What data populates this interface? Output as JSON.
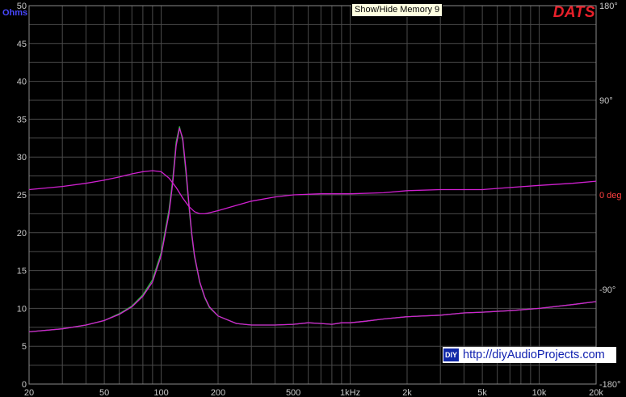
{
  "tooltip": "Show/Hide Memory 9",
  "brand": "DATS",
  "watermark": {
    "badge": "DIY",
    "text": "http://diyAudioProjects.com"
  },
  "colors": {
    "impedance_trace": "#d020d0",
    "memory_trace": "#30c040",
    "phase_trace": "#d020d0",
    "left_axis_label": "#4848ff",
    "right_axis_label": "#ff4040",
    "brand": "#e8202a"
  },
  "chart_data": {
    "type": "line",
    "xscale": "log",
    "xlim": [
      20,
      20000
    ],
    "x_ticks": [
      {
        "v": 20,
        "label": "20"
      },
      {
        "v": 50,
        "label": "50"
      },
      {
        "v": 100,
        "label": "100"
      },
      {
        "v": 200,
        "label": "200"
      },
      {
        "v": 500,
        "label": "500"
      },
      {
        "v": 1000,
        "label": "1kHz"
      },
      {
        "v": 2000,
        "label": "2k"
      },
      {
        "v": 5000,
        "label": "5k"
      },
      {
        "v": 10000,
        "label": "10k"
      },
      {
        "v": 20000,
        "label": "20k"
      }
    ],
    "ylabel": "Ohms",
    "ylim": [
      0,
      50
    ],
    "y_ticks": [
      0,
      5,
      10,
      15,
      20,
      25,
      30,
      35,
      40,
      45,
      50
    ],
    "y2label": "deg",
    "y2lim": [
      -180,
      180
    ],
    "y2_ticks": [
      {
        "v": 180,
        "label": "180°"
      },
      {
        "v": 90,
        "label": "90°"
      },
      {
        "v": 0,
        "label": "0 deg"
      },
      {
        "v": -90,
        "label": "-90°"
      },
      {
        "v": -180,
        "label": "-180°"
      }
    ],
    "grid": true,
    "series": [
      {
        "axis": "left",
        "x": [
          20,
          30,
          40,
          50,
          60,
          70,
          80,
          90,
          100,
          110,
          115,
          120,
          125,
          130,
          135,
          140,
          145,
          150,
          160,
          170,
          180,
          200,
          250,
          300,
          400,
          500,
          600,
          700,
          800,
          900,
          1000,
          1200,
          1500,
          2000,
          3000,
          4000,
          5000,
          7000,
          10000,
          15000,
          20000
        ],
        "values": [
          6.9,
          7.3,
          7.8,
          8.4,
          9.2,
          10.2,
          11.6,
          13.5,
          17.0,
          22.5,
          26.5,
          31.5,
          33.8,
          32.5,
          28.5,
          24.0,
          20.0,
          17.0,
          13.5,
          11.5,
          10.2,
          9.0,
          8.0,
          7.8,
          7.8,
          7.9,
          8.1,
          8.0,
          7.9,
          8.1,
          8.1,
          8.3,
          8.6,
          8.9,
          9.1,
          9.4,
          9.5,
          9.7,
          10.0,
          10.5,
          10.9
        ]
      },
      {
        "axis": "left",
        "x": [
          20,
          30,
          40,
          50,
          60,
          70,
          80,
          90,
          100,
          110,
          115,
          120,
          125,
          130,
          135,
          140,
          145,
          150,
          160,
          170,
          180,
          200,
          250,
          300,
          400,
          500,
          600,
          700,
          800,
          900,
          1000,
          1200,
          1500,
          2000,
          3000,
          4000,
          5000,
          7000,
          10000,
          15000,
          20000
        ],
        "values": [
          6.9,
          7.3,
          7.8,
          8.4,
          9.3,
          10.3,
          11.8,
          13.8,
          17.4,
          23.0,
          27.0,
          32.0,
          34.0,
          32.2,
          28.0,
          23.6,
          19.7,
          16.8,
          13.4,
          11.4,
          10.1,
          9.0,
          8.0,
          7.8,
          7.8,
          7.9,
          8.1,
          8.0,
          7.9,
          8.1,
          8.1,
          8.3,
          8.6,
          8.9,
          9.1,
          9.4,
          9.5,
          9.7,
          10.0,
          10.5,
          10.9
        ]
      },
      {
        "axis": "right",
        "x": [
          20,
          30,
          40,
          50,
          60,
          70,
          80,
          90,
          100,
          110,
          120,
          130,
          140,
          150,
          160,
          170,
          180,
          200,
          250,
          300,
          400,
          500,
          700,
          1000,
          1500,
          2000,
          3000,
          5000,
          7000,
          10000,
          15000,
          20000
        ],
        "values": [
          5,
          8,
          11,
          14,
          17,
          20,
          22,
          23,
          22,
          16,
          7,
          -3,
          -11,
          -16,
          -18,
          -18,
          -17,
          -15,
          -10,
          -6,
          -2,
          0,
          1,
          1,
          2,
          4,
          5,
          5,
          7,
          9,
          11,
          13
        ]
      }
    ]
  }
}
